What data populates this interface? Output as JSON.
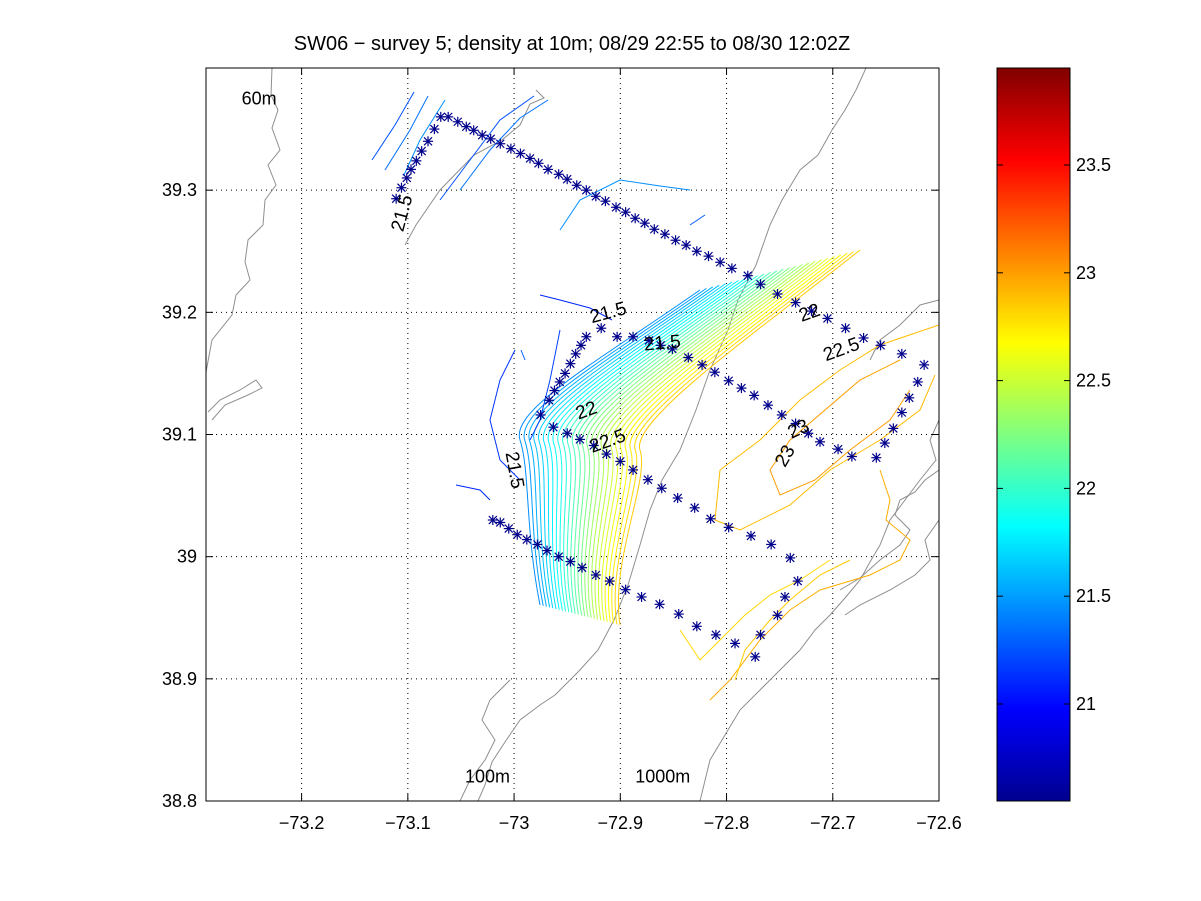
{
  "chart_data": {
    "type": "contour",
    "title": "SW06 − survey 5; density at 10m; 08/29 22:55 to 08/30 12:02Z",
    "xlim": [
      -73.29,
      -72.6
    ],
    "ylim": [
      38.8,
      39.4
    ],
    "x_ticks": [
      -73.2,
      -73.1,
      -73.0,
      -72.9,
      -72.8,
      -72.7,
      -72.6
    ],
    "x_tick_labels": [
      "−73.2",
      "−73.1",
      "−73",
      "−72.9",
      "−72.8",
      "−72.7",
      "−72.6"
    ],
    "y_ticks": [
      38.8,
      38.9,
      39.0,
      39.1,
      39.2,
      39.3
    ],
    "y_tick_labels": [
      "38.8",
      "38.9",
      "39",
      "39.1",
      "39.2",
      "39.3"
    ],
    "grid": "dotted",
    "colormap": "jet",
    "colorbar": {
      "clim": [
        20.55,
        23.95
      ],
      "ticks": [
        21,
        21.5,
        22,
        22.5,
        23,
        23.5
      ],
      "tick_labels": [
        "21",
        "21.5",
        "22",
        "22.5",
        "23",
        "23.5"
      ],
      "placement": "right"
    },
    "bathymetry_labels": [
      {
        "text": "60m",
        "lon": -73.24,
        "lat": 39.37
      },
      {
        "text": "100m",
        "lon": -73.025,
        "lat": 38.815
      },
      {
        "text": "1000m",
        "lon": -72.86,
        "lat": 38.815
      }
    ],
    "contour_labels": [
      {
        "text": "21.5",
        "lon": -73.1,
        "lat": 39.28,
        "rot": -75
      },
      {
        "text": "21.5",
        "lon": -72.91,
        "lat": 39.195,
        "rot": -15
      },
      {
        "text": "21.5",
        "lon": -72.86,
        "lat": 39.17,
        "rot": -5
      },
      {
        "text": "22",
        "lon": -72.93,
        "lat": 39.115,
        "rot": -20
      },
      {
        "text": "22.5",
        "lon": -72.91,
        "lat": 39.09,
        "rot": -20
      },
      {
        "text": "21.5",
        "lon": -73.005,
        "lat": 39.07,
        "rot": 80
      },
      {
        "text": "22",
        "lon": -72.72,
        "lat": 39.195,
        "rot": -20
      },
      {
        "text": "22.5",
        "lon": -72.69,
        "lat": 39.165,
        "rot": -20
      },
      {
        "text": "23",
        "lon": -72.73,
        "lat": 39.1,
        "rot": -25
      },
      {
        "text": "23",
        "lon": -72.74,
        "lat": 39.08,
        "rot": -60
      }
    ],
    "stations": [
      [
        -73.062,
        39.36
      ],
      [
        -73.053,
        39.356
      ],
      [
        -73.045,
        39.352
      ],
      [
        -73.038,
        39.349
      ],
      [
        -73.03,
        39.345
      ],
      [
        -73.022,
        39.342
      ],
      [
        -73.013,
        39.338
      ],
      [
        -73.003,
        39.334
      ],
      [
        -72.994,
        39.33
      ],
      [
        -72.985,
        39.326
      ],
      [
        -72.977,
        39.322
      ],
      [
        -72.968,
        39.317
      ],
      [
        -72.958,
        39.313
      ],
      [
        -72.95,
        39.309
      ],
      [
        -72.941,
        39.304
      ],
      [
        -72.932,
        39.3
      ],
      [
        -72.923,
        39.295
      ],
      [
        -72.914,
        39.291
      ],
      [
        -72.904,
        39.286
      ],
      [
        -72.895,
        39.282
      ],
      [
        -72.886,
        39.277
      ],
      [
        -72.877,
        39.273
      ],
      [
        -72.868,
        39.268
      ],
      [
        -72.858,
        39.264
      ],
      [
        -72.848,
        39.259
      ],
      [
        -72.838,
        39.255
      ],
      [
        -72.828,
        39.25
      ],
      [
        -72.817,
        39.246
      ],
      [
        -72.806,
        39.241
      ],
      [
        -72.795,
        39.236
      ],
      [
        -72.78,
        39.23
      ],
      [
        -72.768,
        39.223
      ],
      [
        -72.752,
        39.215
      ],
      [
        -72.735,
        39.208
      ],
      [
        -72.72,
        39.201
      ],
      [
        -72.705,
        39.195
      ],
      [
        -72.688,
        39.187
      ],
      [
        -72.671,
        39.179
      ],
      [
        -72.655,
        39.173
      ],
      [
        -72.635,
        39.166
      ],
      [
        -72.614,
        39.157
      ],
      [
        -72.62,
        39.143
      ],
      [
        -72.628,
        39.13
      ],
      [
        -72.635,
        39.118
      ],
      [
        -72.643,
        39.105
      ],
      [
        -72.651,
        39.093
      ],
      [
        -72.659,
        39.081
      ],
      [
        -72.682,
        39.082
      ],
      [
        -72.695,
        39.088
      ],
      [
        -72.712,
        39.094
      ],
      [
        -72.723,
        39.101
      ],
      [
        -72.735,
        39.109
      ],
      [
        -72.748,
        39.116
      ],
      [
        -72.761,
        39.124
      ],
      [
        -72.774,
        39.132
      ],
      [
        -72.786,
        39.138
      ],
      [
        -72.798,
        39.144
      ],
      [
        -72.811,
        39.151
      ],
      [
        -72.823,
        39.157
      ],
      [
        -72.836,
        39.163
      ],
      [
        -72.851,
        39.17
      ],
      [
        -72.862,
        39.173
      ],
      [
        -72.873,
        39.177
      ],
      [
        -72.888,
        39.18
      ],
      [
        -72.903,
        39.18
      ],
      [
        -72.918,
        39.187
      ],
      [
        -72.932,
        39.18
      ],
      [
        -72.937,
        39.173
      ],
      [
        -72.942,
        39.166
      ],
      [
        -72.947,
        39.158
      ],
      [
        -72.952,
        39.15
      ],
      [
        -72.957,
        39.143
      ],
      [
        -72.962,
        39.136
      ],
      [
        -72.967,
        39.128
      ],
      [
        -72.975,
        39.116
      ],
      [
        -72.963,
        39.106
      ],
      [
        -72.95,
        39.101
      ],
      [
        -72.938,
        39.096
      ],
      [
        -72.925,
        39.091
      ],
      [
        -72.913,
        39.084
      ],
      [
        -72.9,
        39.078
      ],
      [
        -72.888,
        39.071
      ],
      [
        -72.874,
        39.063
      ],
      [
        -72.861,
        39.056
      ],
      [
        -72.846,
        39.048
      ],
      [
        -72.83,
        39.04
      ],
      [
        -72.815,
        39.031
      ],
      [
        -72.798,
        39.024
      ],
      [
        -72.777,
        39.017
      ],
      [
        -72.758,
        39.01
      ],
      [
        -72.74,
        38.999
      ],
      [
        -72.733,
        38.98
      ],
      [
        -72.745,
        38.967
      ],
      [
        -72.752,
        38.952
      ],
      [
        -72.768,
        38.936
      ],
      [
        -72.773,
        38.918
      ],
      [
        -72.792,
        38.929
      ],
      [
        -72.81,
        38.936
      ],
      [
        -72.828,
        38.943
      ],
      [
        -72.845,
        38.953
      ],
      [
        -72.863,
        38.961
      ],
      [
        -72.88,
        38.967
      ],
      [
        -72.895,
        38.973
      ],
      [
        -72.91,
        38.98
      ],
      [
        -72.923,
        38.985
      ],
      [
        -72.936,
        38.991
      ],
      [
        -72.947,
        38.996
      ],
      [
        -72.958,
        39.0
      ],
      [
        -72.969,
        39.005
      ],
      [
        -72.978,
        39.01
      ],
      [
        -72.988,
        39.014
      ],
      [
        -72.997,
        39.018
      ],
      [
        -73.005,
        39.023
      ],
      [
        -73.013,
        39.028
      ],
      [
        -73.02,
        39.03
      ],
      [
        -73.069,
        39.36
      ],
      [
        -73.075,
        39.35
      ],
      [
        -73.081,
        39.34
      ],
      [
        -73.087,
        39.332
      ],
      [
        -73.092,
        39.324
      ],
      [
        -73.097,
        39.317
      ],
      [
        -73.101,
        39.31
      ],
      [
        -73.106,
        39.302
      ],
      [
        -73.111,
        39.293
      ]
    ]
  }
}
